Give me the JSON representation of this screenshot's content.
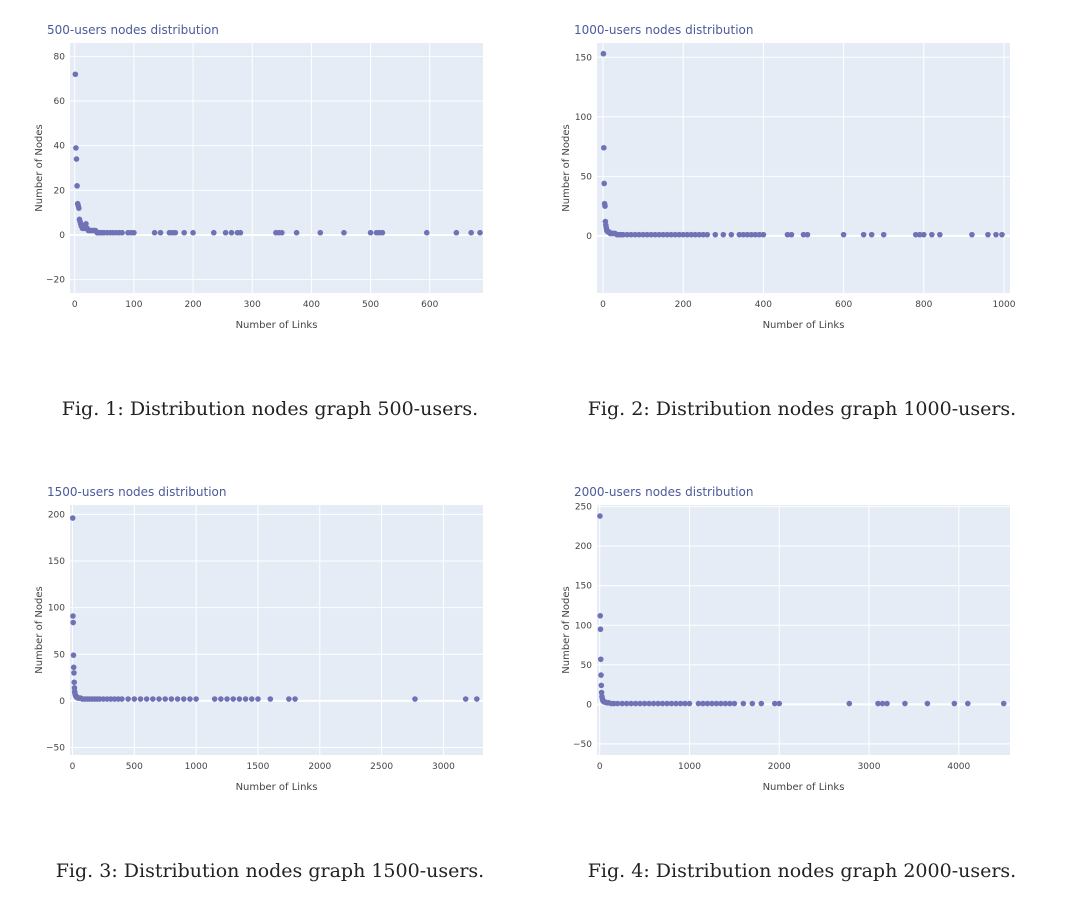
{
  "chart_data": [
    {
      "type": "scatter",
      "title": "500-users nodes distribution",
      "xlabel": "Number of Links",
      "ylabel": "Number of Nodes",
      "xlim": [
        -8,
        690
      ],
      "ylim": [
        -26,
        86
      ],
      "xticks": [
        0,
        100,
        200,
        300,
        400,
        500,
        600
      ],
      "yticks": [
        -20,
        0,
        20,
        40,
        60,
        80
      ],
      "grid": true,
      "marker_color": "#6f73b6",
      "x": [
        1,
        2,
        3,
        4,
        5,
        6,
        7,
        8,
        9,
        10,
        11,
        12,
        13,
        14,
        15,
        17,
        19,
        21,
        23,
        25,
        27,
        29,
        31,
        33,
        35,
        38,
        41,
        44,
        47,
        50,
        55,
        60,
        65,
        70,
        75,
        80,
        90,
        95,
        100,
        135,
        145,
        160,
        165,
        170,
        185,
        200,
        235,
        255,
        265,
        275,
        280,
        340,
        345,
        350,
        375,
        415,
        455,
        500,
        510,
        515,
        520,
        595,
        645,
        670,
        685
      ],
      "y": [
        72,
        39,
        34,
        22,
        14,
        13,
        12,
        7,
        6,
        5,
        4,
        4,
        3,
        3,
        3,
        3,
        5,
        3,
        2,
        2,
        2,
        2,
        2,
        2,
        2,
        1,
        1,
        1,
        1,
        1,
        1,
        1,
        1,
        1,
        1,
        1,
        1,
        1,
        1,
        1,
        1,
        1,
        1,
        1,
        1,
        1,
        1,
        1,
        1,
        1,
        1,
        1,
        1,
        1,
        1,
        1,
        1,
        1,
        1,
        1,
        1,
        1,
        1,
        1,
        1
      ],
      "caption": "Fig. 1: Distribution nodes graph 500-users."
    },
    {
      "type": "scatter",
      "title": "1000-users nodes distribution",
      "xlabel": "Number of Links",
      "ylabel": "Number of Nodes",
      "xlim": [
        -15,
        1015
      ],
      "ylim": [
        -48,
        162
      ],
      "xticks": [
        0,
        200,
        400,
        600,
        800,
        1000
      ],
      "yticks": [
        0,
        50,
        100,
        150
      ],
      "grid": true,
      "marker_color": "#6f73b6",
      "x": [
        1,
        2,
        3,
        4,
        5,
        6,
        7,
        8,
        9,
        10,
        12,
        14,
        16,
        18,
        20,
        23,
        26,
        30,
        35,
        40,
        45,
        50,
        60,
        70,
        80,
        90,
        100,
        110,
        120,
        130,
        140,
        150,
        160,
        170,
        180,
        190,
        200,
        210,
        220,
        230,
        240,
        250,
        260,
        280,
        300,
        320,
        340,
        350,
        360,
        370,
        380,
        390,
        400,
        460,
        470,
        500,
        510,
        600,
        650,
        670,
        700,
        780,
        790,
        800,
        820,
        840,
        920,
        960,
        980,
        995
      ],
      "y": [
        153,
        74,
        44,
        27,
        25,
        12,
        9,
        7,
        5,
        4,
        4,
        3,
        3,
        2,
        2,
        2,
        2,
        2,
        1,
        1,
        1,
        1,
        1,
        1,
        1,
        1,
        1,
        1,
        1,
        1,
        1,
        1,
        1,
        1,
        1,
        1,
        1,
        1,
        1,
        1,
        1,
        1,
        1,
        1,
        1,
        1,
        1,
        1,
        1,
        1,
        1,
        1,
        1,
        1,
        1,
        1,
        1,
        1,
        1,
        1,
        1,
        1,
        1,
        1,
        1,
        1,
        1,
        1,
        1,
        1
      ],
      "caption": "Fig. 2: Distribution nodes graph 1000-users."
    },
    {
      "type": "scatter",
      "title": "1500-users nodes distribution",
      "xlabel": "Number of Links",
      "ylabel": "Number of Nodes",
      "xlim": [
        -20,
        3320
      ],
      "ylim": [
        -58,
        210
      ],
      "xticks": [
        0,
        500,
        1000,
        1500,
        2000,
        2500,
        3000
      ],
      "yticks": [
        -50,
        0,
        50,
        100,
        150,
        200
      ],
      "grid": true,
      "marker_color": "#6f73b6",
      "x": [
        2,
        4,
        6,
        8,
        10,
        12,
        14,
        16,
        18,
        20,
        24,
        28,
        32,
        38,
        45,
        55,
        65,
        80,
        100,
        120,
        140,
        160,
        180,
        200,
        220,
        250,
        280,
        310,
        340,
        370,
        400,
        450,
        500,
        550,
        600,
        650,
        700,
        750,
        800,
        850,
        900,
        950,
        1000,
        1150,
        1200,
        1250,
        1300,
        1350,
        1400,
        1450,
        1500,
        1600,
        1750,
        1800,
        2770,
        3180,
        3270
      ],
      "y": [
        196,
        91,
        84,
        49,
        36,
        30,
        20,
        14,
        10,
        8,
        6,
        5,
        4,
        4,
        3,
        3,
        3,
        2,
        2,
        2,
        2,
        2,
        2,
        2,
        2,
        2,
        2,
        2,
        2,
        2,
        2,
        2,
        2,
        2,
        2,
        2,
        2,
        2,
        2,
        2,
        2,
        2,
        2,
        2,
        2,
        2,
        2,
        2,
        2,
        2,
        2,
        2,
        2,
        2,
        2,
        2,
        2
      ],
      "caption": "Fig. 3: Distribution nodes graph 1500-users."
    },
    {
      "type": "scatter",
      "title": "2000-users nodes distribution",
      "xlabel": "Number of Links",
      "ylabel": "Number of Nodes",
      "xlim": [
        -30,
        4570
      ],
      "ylim": [
        -64,
        252
      ],
      "xticks": [
        0,
        1000,
        2000,
        3000,
        4000
      ],
      "yticks": [
        -50,
        0,
        50,
        100,
        150,
        200,
        250
      ],
      "grid": true,
      "marker_color": "#6f73b6",
      "x": [
        3,
        6,
        9,
        12,
        15,
        18,
        21,
        25,
        30,
        35,
        40,
        50,
        60,
        80,
        100,
        130,
        160,
        200,
        250,
        300,
        350,
        400,
        450,
        500,
        550,
        600,
        650,
        700,
        750,
        800,
        850,
        900,
        950,
        1000,
        1100,
        1150,
        1200,
        1250,
        1300,
        1350,
        1400,
        1450,
        1500,
        1600,
        1700,
        1800,
        1950,
        2000,
        2780,
        3100,
        3150,
        3200,
        3400,
        3650,
        3950,
        4100,
        4500
      ],
      "y": [
        238,
        112,
        95,
        57,
        37,
        24,
        15,
        10,
        7,
        5,
        4,
        3,
        3,
        2,
        2,
        1,
        1,
        1,
        1,
        1,
        1,
        1,
        1,
        1,
        1,
        1,
        1,
        1,
        1,
        1,
        1,
        1,
        1,
        1,
        1,
        1,
        1,
        1,
        1,
        1,
        1,
        1,
        1,
        1,
        1,
        1,
        1,
        1,
        1,
        1,
        1,
        1,
        1,
        1,
        1,
        1,
        1
      ],
      "caption": "Fig. 4: Distribution nodes graph 2000-users."
    }
  ]
}
